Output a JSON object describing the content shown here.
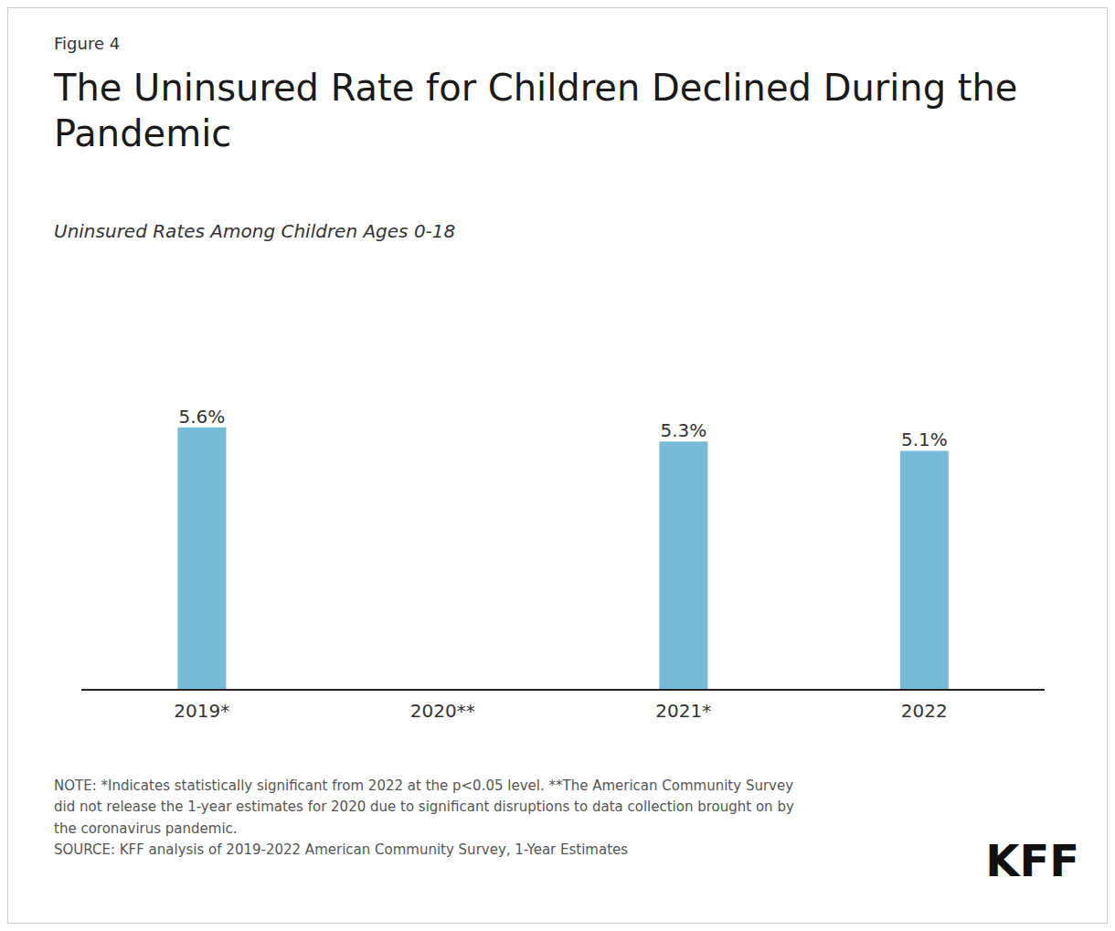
{
  "chart_data": {
    "type": "bar",
    "title": "The Uninsured Rate for Children Declined During the\nPandemic",
    "subtitle": "Uninsured Rates Among Children Ages 0-18",
    "annotations": [
      "Figure 4",
      "NOTE: *Indicates statistically significant from 2022 at the p<0.05 level. **The American Community Survey\ndid not release the 1-year estimates for 2020 due to significant disruptions to data collection brought on by\nthe coronavirus pandemic.\nSOURCE: KFF analysis of 2019-2022 American Community Survey, 1-Year Estimates",
      "KFF"
    ],
    "categories": [
      "2019*",
      "2020**",
      "2021*",
      "2022"
    ],
    "values": [
      5.6,
      null,
      5.3,
      5.1
    ],
    "value_labels": [
      "5.6%",
      null,
      "5.3%",
      "5.1%"
    ],
    "data_labels": true,
    "color": "#78bbd9",
    "ylim": [
      0,
      8.5
    ],
    "grid": false,
    "tick_labels": "x"
  }
}
